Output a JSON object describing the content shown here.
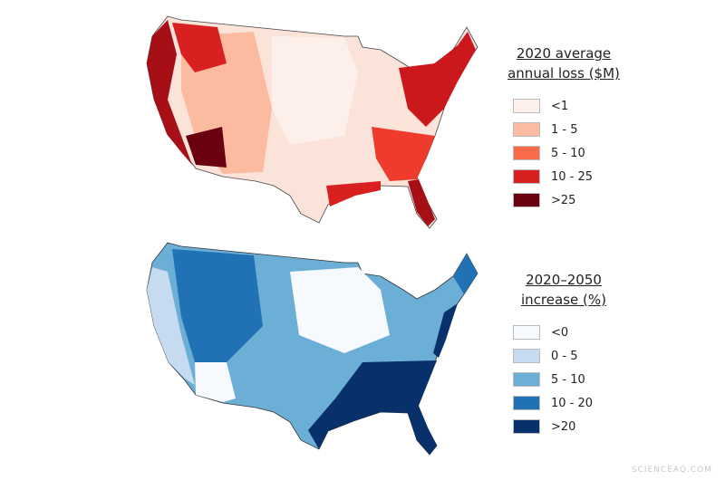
{
  "maps": [
    {
      "legend": {
        "title_line1": "2020 average",
        "title_line2": "annual loss ($M)",
        "items": [
          {
            "label": "<1",
            "color": "#fdf0ea"
          },
          {
            "label": "1 - 5",
            "color": "#fcbba1"
          },
          {
            "label": "5 - 10",
            "color": "#fb6a4a"
          },
          {
            "label": "10 - 25",
            "color": "#d7201f"
          },
          {
            "label": ">25",
            "color": "#6b0010"
          }
        ]
      }
    },
    {
      "legend": {
        "title_line1": "2020–2050",
        "title_line2": "increase (%)",
        "items": [
          {
            "label": "<0",
            "color": "#f6f9fd"
          },
          {
            "label": "0 - 5",
            "color": "#c6dbef"
          },
          {
            "label": "5 - 10",
            "color": "#6baed6"
          },
          {
            "label": "10 - 20",
            "color": "#2171b5"
          },
          {
            "label": ">20",
            "color": "#08306b"
          }
        ]
      }
    }
  ],
  "watermark": "SCIENCEAQ.COM"
}
